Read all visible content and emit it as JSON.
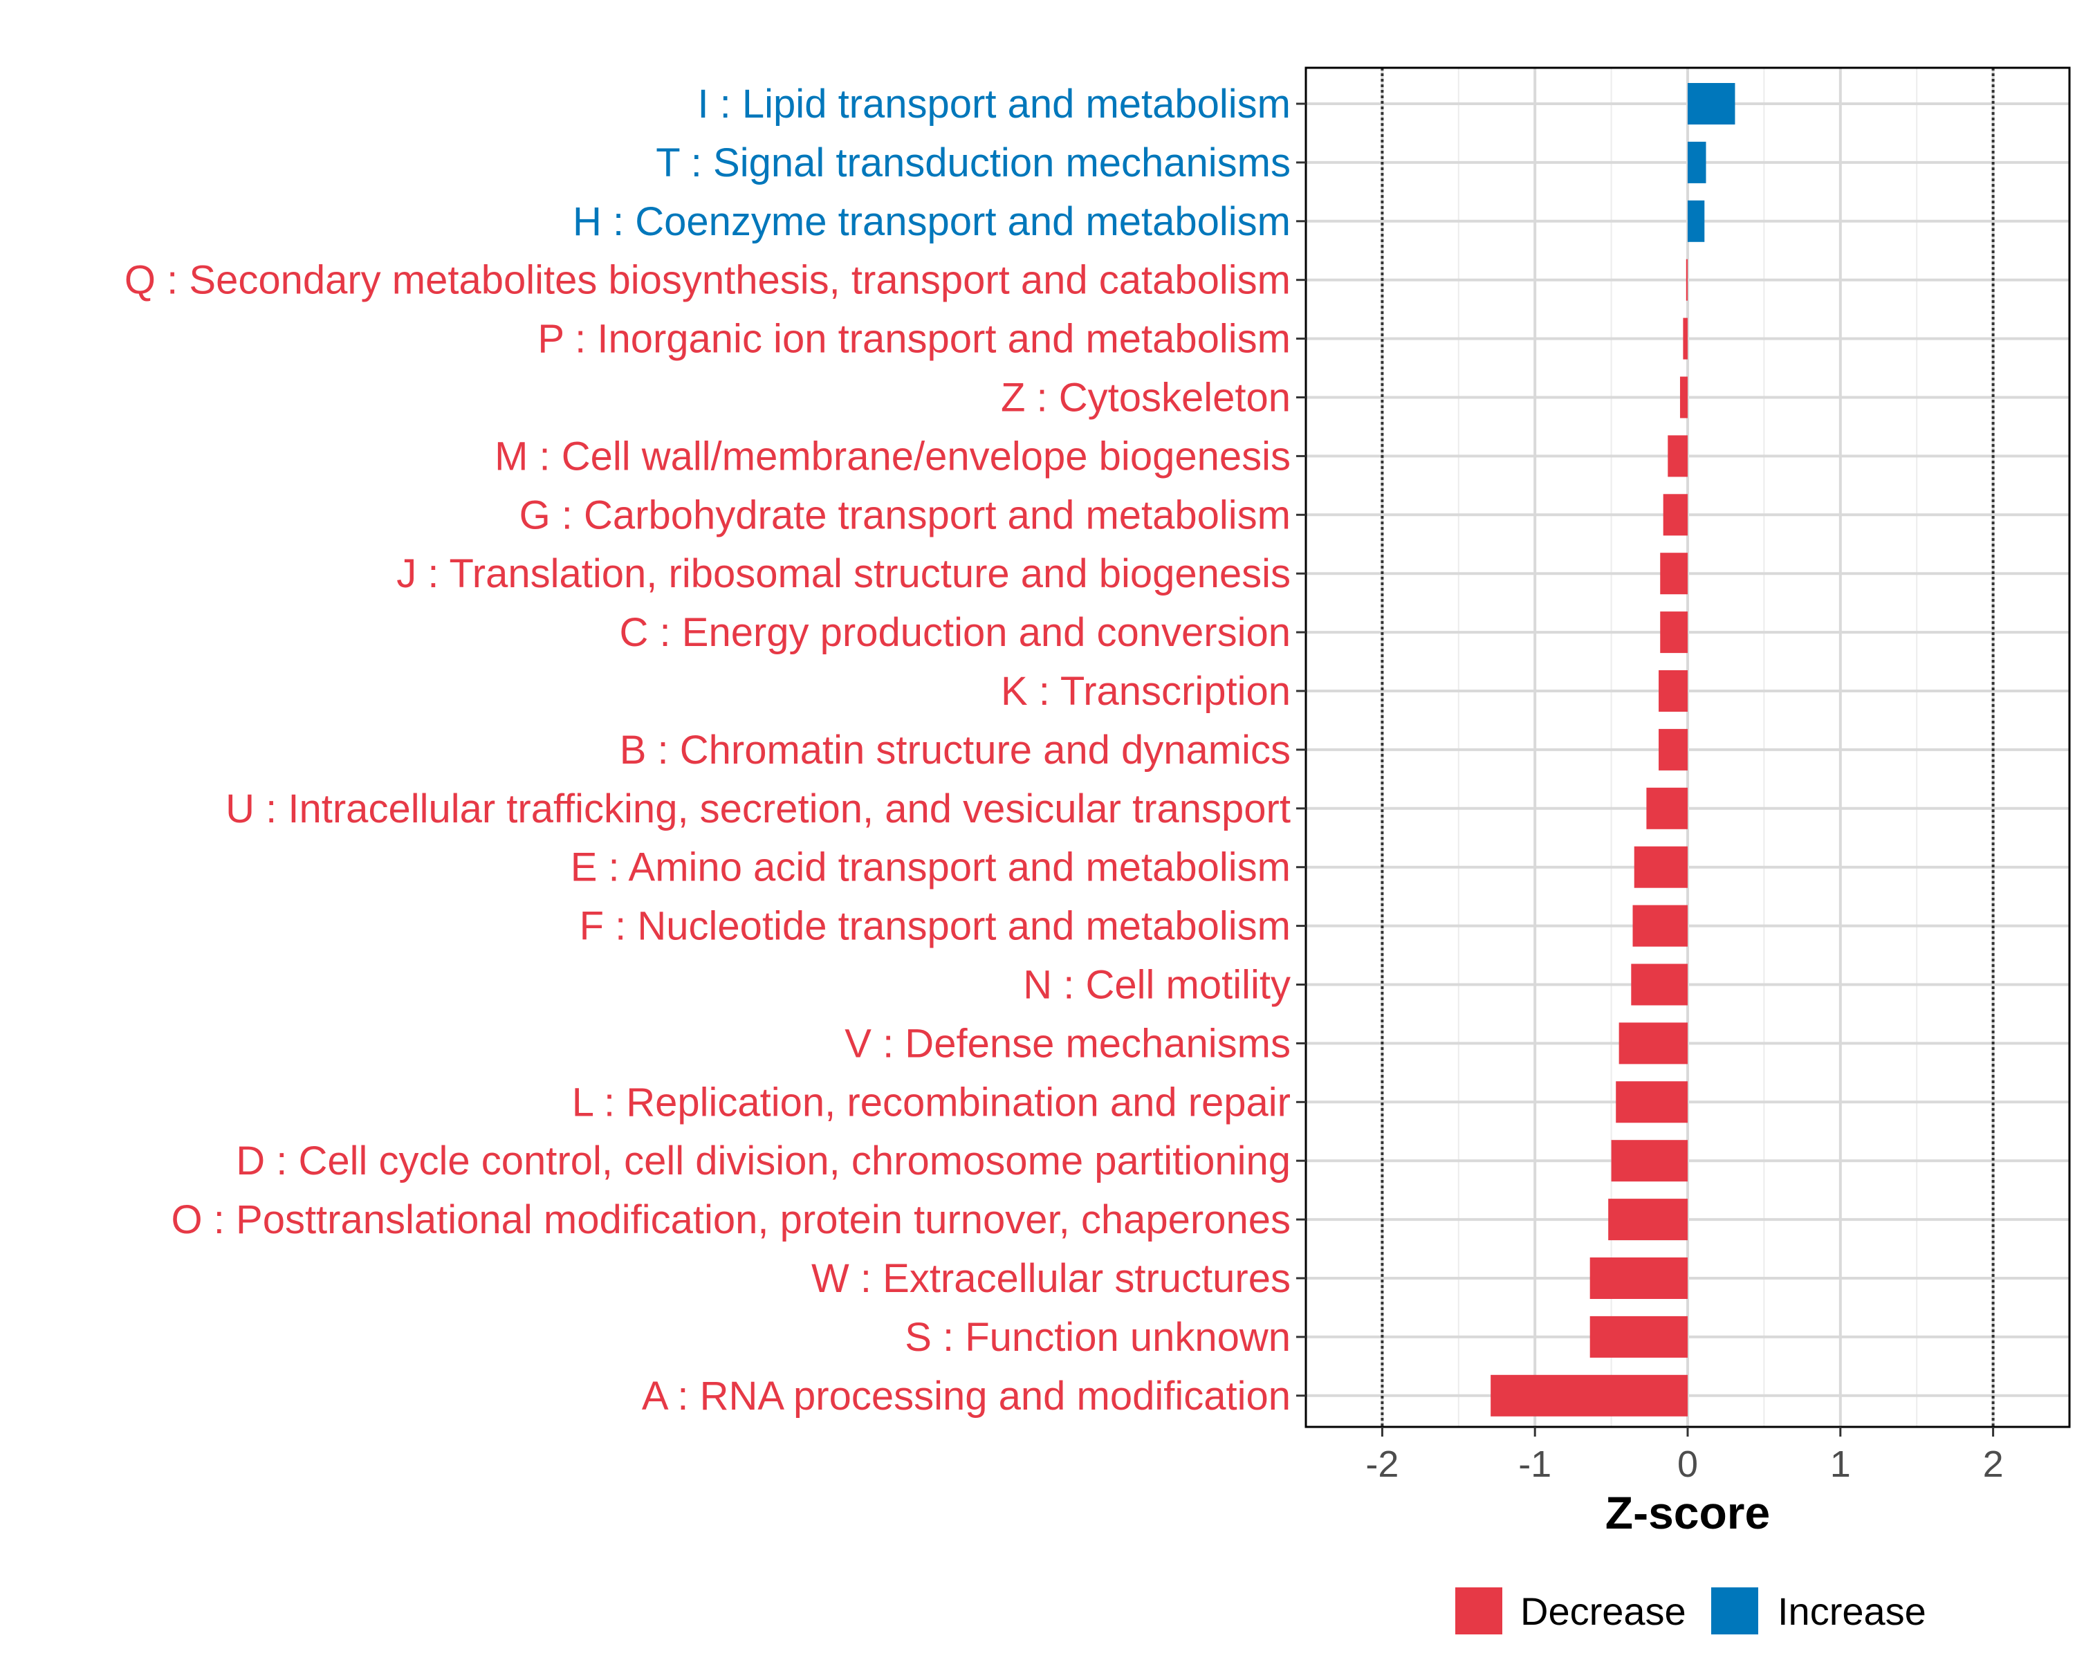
{
  "chart_data": {
    "type": "bar",
    "orientation": "horizontal",
    "title": "",
    "xlabel": "Z-score",
    "ylabel": "",
    "xlim": [
      -2.5,
      2.5
    ],
    "xticks": [
      -2,
      -1,
      0,
      1,
      2
    ],
    "xtick_labels": [
      "-2",
      "-1",
      "0",
      "1",
      "2"
    ],
    "reference_lines": [
      -2,
      2
    ],
    "grid": true,
    "colors": {
      "Decrease": "#E63946",
      "Increase": "#0077BB"
    },
    "legend": {
      "placement": "bottom",
      "entries": [
        "Decrease",
        "Increase"
      ]
    },
    "bars": [
      {
        "label": "I : Lipid transport and metabolism",
        "value": 0.31,
        "direction": "Increase"
      },
      {
        "label": "T : Signal transduction mechanisms",
        "value": 0.12,
        "direction": "Increase"
      },
      {
        "label": "H : Coenzyme transport and metabolism",
        "value": 0.11,
        "direction": "Increase"
      },
      {
        "label": "Q : Secondary metabolites biosynthesis, transport and catabolism",
        "value": -0.01,
        "direction": "Decrease"
      },
      {
        "label": "P : Inorganic ion transport and metabolism",
        "value": -0.03,
        "direction": "Decrease"
      },
      {
        "label": "Z : Cytoskeleton",
        "value": -0.05,
        "direction": "Decrease"
      },
      {
        "label": "M : Cell wall/membrane/envelope biogenesis",
        "value": -0.13,
        "direction": "Decrease"
      },
      {
        "label": "G : Carbohydrate transport and metabolism",
        "value": -0.16,
        "direction": "Decrease"
      },
      {
        "label": "J : Translation, ribosomal structure and biogenesis",
        "value": -0.18,
        "direction": "Decrease"
      },
      {
        "label": "C : Energy production and conversion",
        "value": -0.18,
        "direction": "Decrease"
      },
      {
        "label": "K : Transcription",
        "value": -0.19,
        "direction": "Decrease"
      },
      {
        "label": "B : Chromatin structure and dynamics",
        "value": -0.19,
        "direction": "Decrease"
      },
      {
        "label": "U : Intracellular trafficking, secretion, and vesicular transport",
        "value": -0.27,
        "direction": "Decrease"
      },
      {
        "label": "E : Amino acid transport and metabolism",
        "value": -0.35,
        "direction": "Decrease"
      },
      {
        "label": "F : Nucleotide transport and metabolism",
        "value": -0.36,
        "direction": "Decrease"
      },
      {
        "label": "N : Cell motility",
        "value": -0.37,
        "direction": "Decrease"
      },
      {
        "label": "V : Defense mechanisms",
        "value": -0.45,
        "direction": "Decrease"
      },
      {
        "label": "L : Replication, recombination and repair",
        "value": -0.47,
        "direction": "Decrease"
      },
      {
        "label": "D : Cell cycle control, cell division, chromosome partitioning",
        "value": -0.5,
        "direction": "Decrease"
      },
      {
        "label": "O : Posttranslational modification, protein turnover, chaperones",
        "value": -0.52,
        "direction": "Decrease"
      },
      {
        "label": "W : Extracellular structures",
        "value": -0.64,
        "direction": "Decrease"
      },
      {
        "label": "S : Function unknown",
        "value": -0.64,
        "direction": "Decrease"
      },
      {
        "label": "A : RNA processing and modification",
        "value": -1.29,
        "direction": "Decrease"
      }
    ]
  }
}
